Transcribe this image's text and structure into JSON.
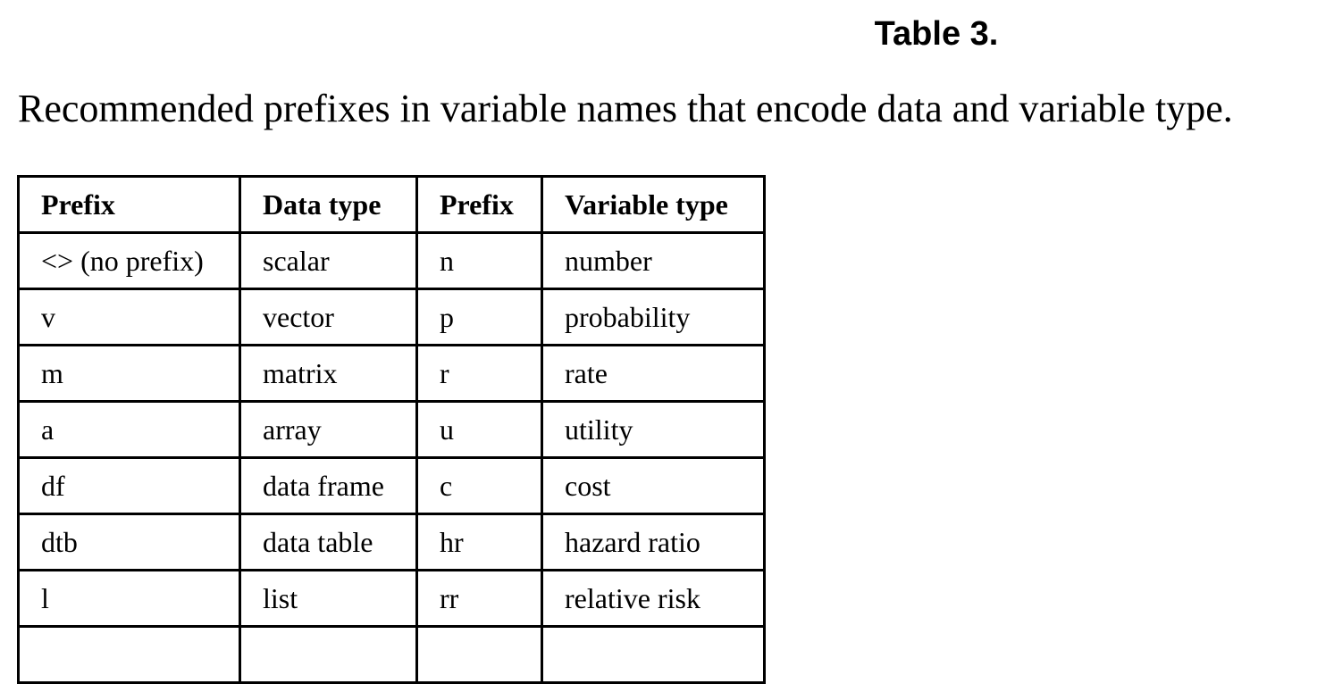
{
  "title": "Table 3.",
  "caption": "Recommended prefixes in variable names that encode data and variable type.",
  "table": {
    "headers": [
      "Prefix",
      "Data type",
      "Prefix",
      "Variable type"
    ],
    "rows": [
      [
        "<> (no prefix)",
        "scalar",
        "n",
        "number"
      ],
      [
        "v",
        "vector",
        "p",
        "probability"
      ],
      [
        "m",
        "matrix",
        "r",
        "rate"
      ],
      [
        "a",
        "array",
        "u",
        "utility"
      ],
      [
        "df",
        "data frame",
        "c",
        "cost"
      ],
      [
        "dtb",
        "data table",
        "hr",
        "hazard ratio"
      ],
      [
        "l",
        "list",
        "rr",
        "relative risk"
      ],
      [
        "",
        "",
        "",
        ""
      ]
    ]
  }
}
